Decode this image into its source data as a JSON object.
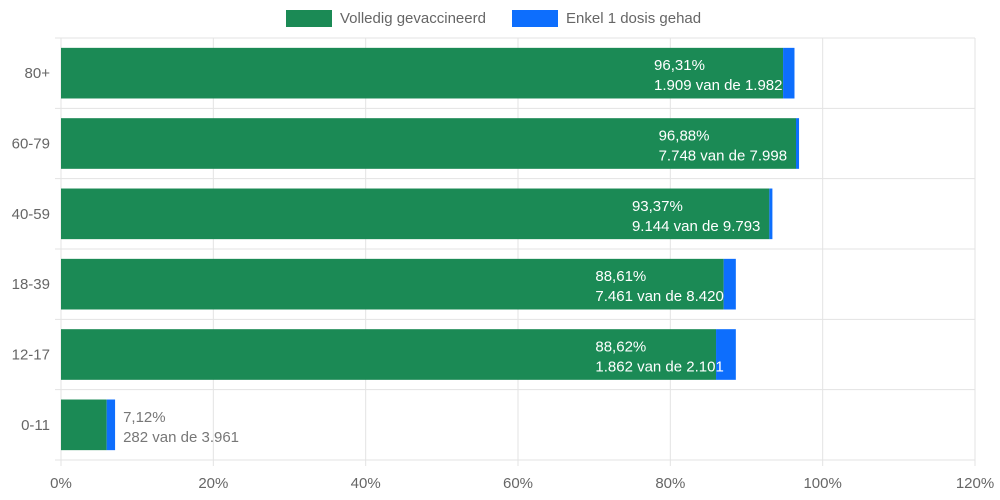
{
  "chart_data": {
    "type": "bar",
    "orientation": "horizontal",
    "stacked": true,
    "categories": [
      "80+",
      "60-79",
      "40-59",
      "18-39",
      "12-17",
      "0-11"
    ],
    "series": [
      {
        "name": "Volledig gevaccineerd",
        "color": "#1b8a55",
        "values": [
          94.8,
          96.5,
          93.0,
          87.0,
          86.0,
          6.0
        ]
      },
      {
        "name": "Enkel 1 dosis gehad",
        "color": "#0d6efd",
        "values": [
          1.5,
          0.4,
          0.4,
          1.6,
          2.6,
          1.1
        ]
      }
    ],
    "data_labels": [
      {
        "percent": "96,31%",
        "detail": "1.909 van de 1.982"
      },
      {
        "percent": "96,88%",
        "detail": "7.748 van de 7.998"
      },
      {
        "percent": "93,37%",
        "detail": "9.144 van de 9.793"
      },
      {
        "percent": "88,61%",
        "detail": "7.461 van de 8.420"
      },
      {
        "percent": "88,62%",
        "detail": "1.862 van de 2.101"
      },
      {
        "percent": "7,12%",
        "detail": "282 van de 3.961"
      }
    ],
    "xlim": [
      0,
      120
    ],
    "xticks": [
      "0%",
      "20%",
      "40%",
      "60%",
      "80%",
      "100%",
      "120%"
    ],
    "legend_position": "top",
    "grid": true
  }
}
